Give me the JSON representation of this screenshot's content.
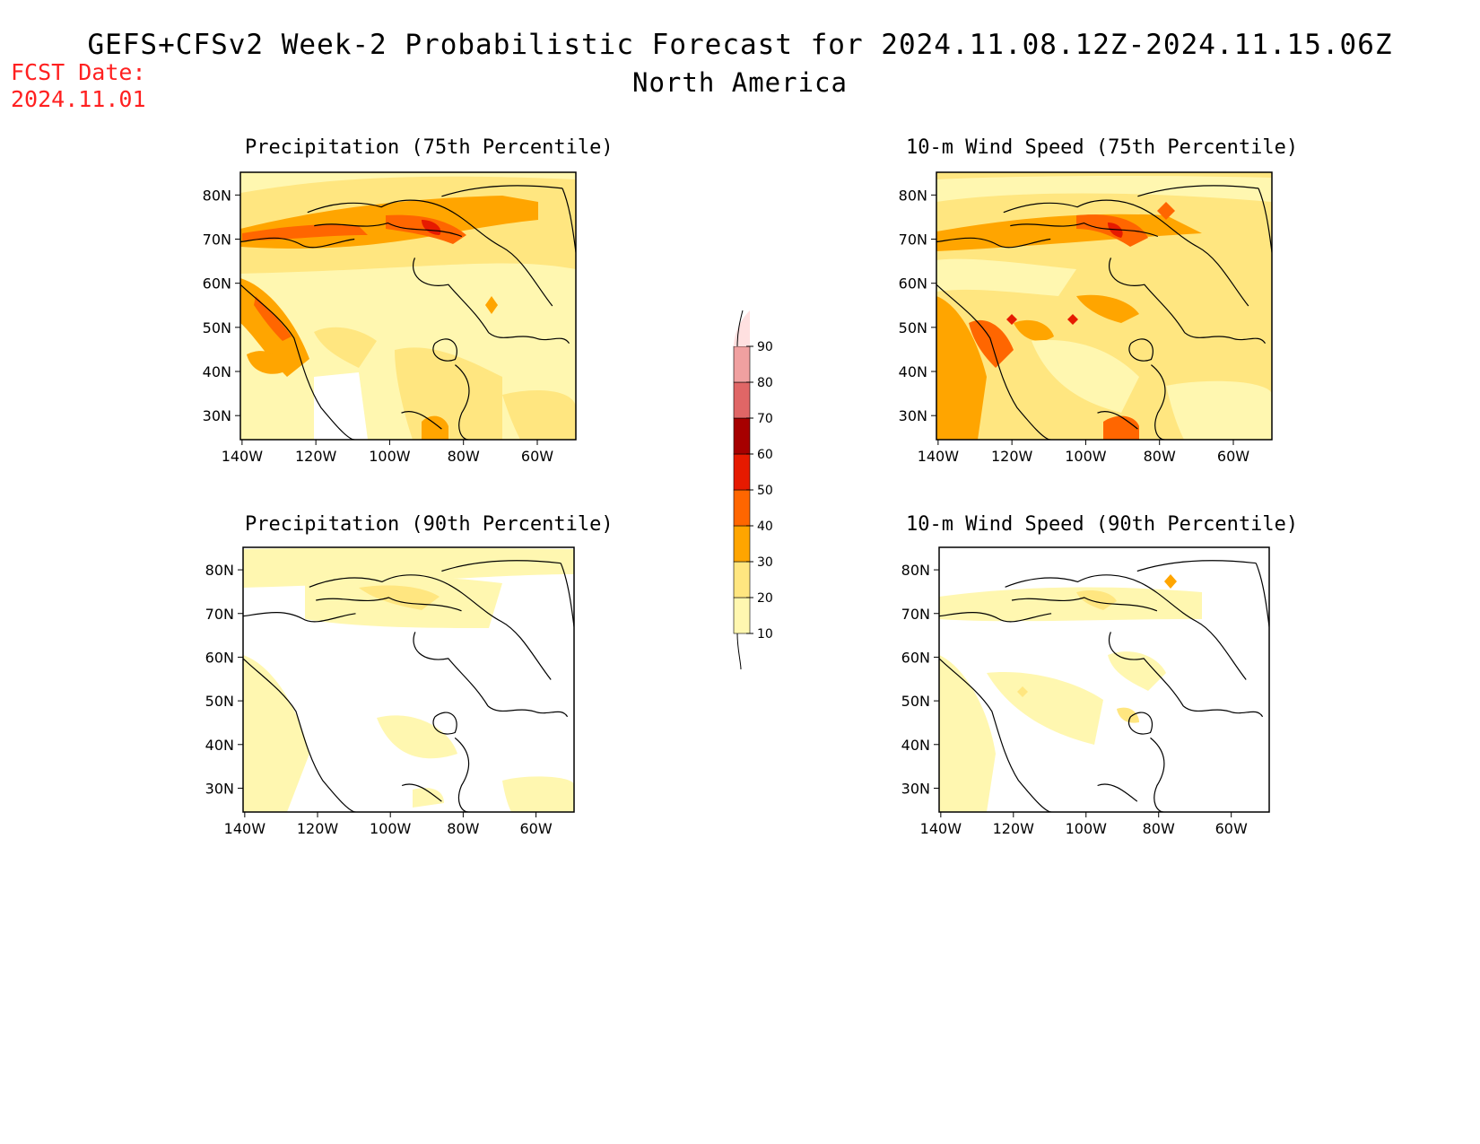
{
  "header": {
    "title": "GEFS+CFSv2 Week-2 Probabilistic Forecast for 2024.11.08.12Z-2024.11.15.06Z",
    "subtitle": "North America",
    "fcst_label": "FCST Date:",
    "fcst_date": "2024.11.01"
  },
  "panels": [
    {
      "title": "Precipitation (75th Percentile)"
    },
    {
      "title": "10-m Wind Speed (75th Percentile)"
    },
    {
      "title": "Precipitation (90th Percentile)"
    },
    {
      "title": "10-m Wind Speed (90th Percentile)"
    }
  ],
  "axes": {
    "lat_ticks": [
      "80N",
      "70N",
      "60N",
      "50N",
      "40N",
      "30N"
    ],
    "lon_ticks": [
      "140W",
      "120W",
      "100W",
      "80W",
      "60W"
    ]
  },
  "colorbar": {
    "levels": [
      "10",
      "20",
      "30",
      "40",
      "50",
      "60",
      "70",
      "80",
      "90"
    ],
    "colors": [
      "#fff7b0",
      "#ffe680",
      "#ffa500",
      "#ff6600",
      "#e61a00",
      "#a60000",
      "#e06666",
      "#f0a0a0",
      "#ffe0e0"
    ]
  }
}
